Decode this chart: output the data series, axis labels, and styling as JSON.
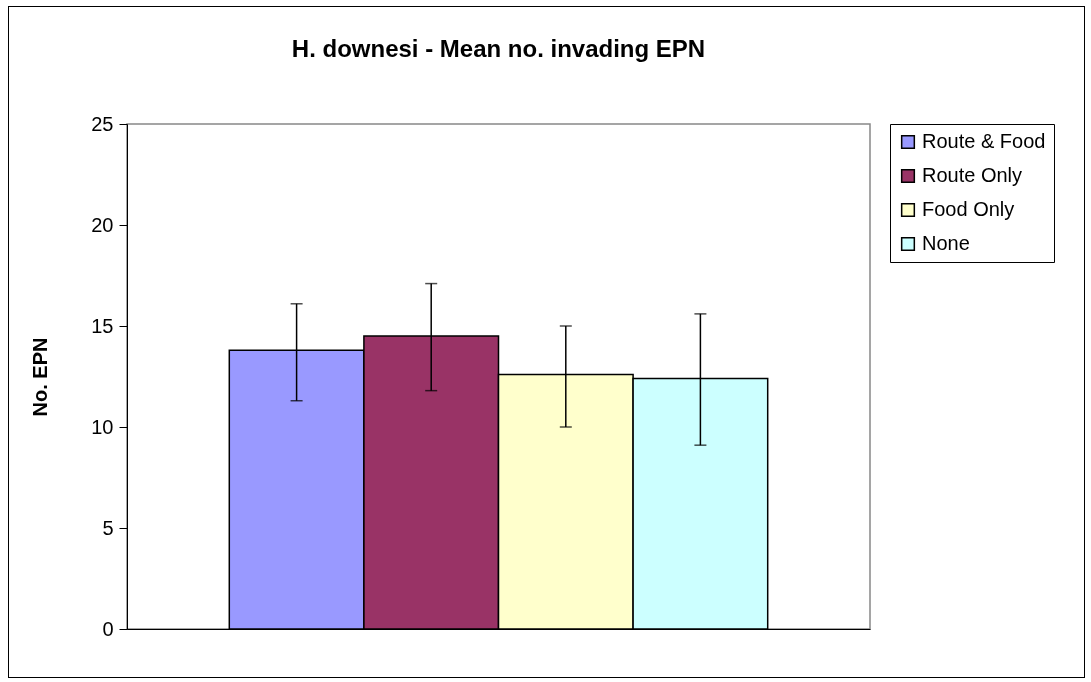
{
  "chart_data": {
    "type": "bar",
    "title": "H. downesi - Mean no. invading EPN",
    "ylabel": "No. EPN",
    "categories": [
      null
    ],
    "series": [
      {
        "name": "Route & Food",
        "color": "#9999ff",
        "values": [
          13.8
        ],
        "errors": [
          [
            11.3,
            16.1
          ]
        ]
      },
      {
        "name": "Route Only",
        "color": "#993366",
        "values": [
          14.5
        ],
        "errors": [
          [
            11.8,
            17.1
          ]
        ]
      },
      {
        "name": "Food Only",
        "color": "#ffffcc",
        "values": [
          12.6
        ],
        "errors": [
          [
            10.0,
            15.0
          ]
        ]
      },
      {
        "name": "None",
        "color": "#ccffff",
        "values": [
          12.4
        ],
        "errors": [
          [
            9.1,
            15.6
          ]
        ]
      }
    ],
    "ylim": [
      0,
      25
    ],
    "yticks": [
      0,
      5,
      10,
      15,
      20,
      25
    ],
    "grid": false,
    "legend": "right"
  }
}
